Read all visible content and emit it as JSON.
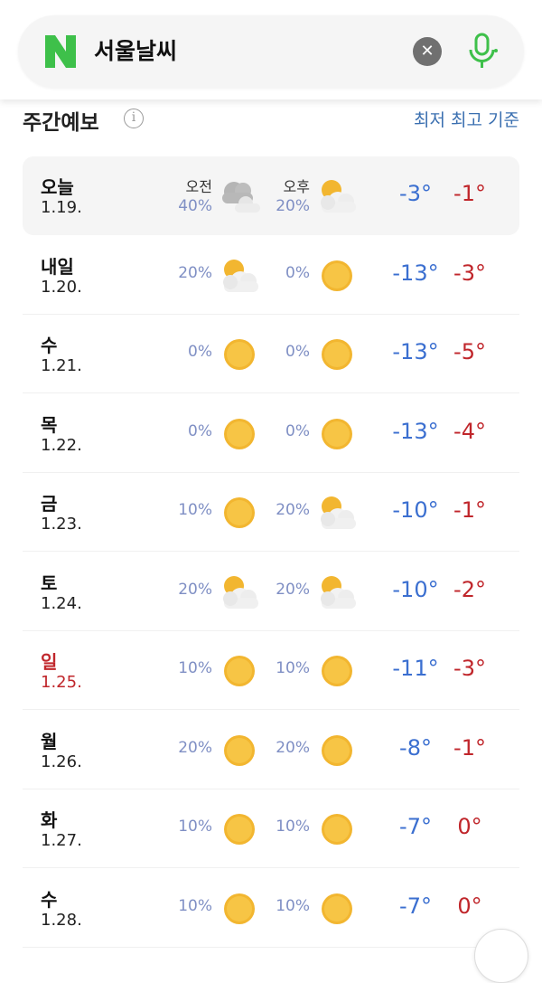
{
  "search": {
    "query": "서울날씨",
    "clear_icon": "close-icon",
    "mic_icon": "microphone-icon",
    "brand_color": "#3ec04a"
  },
  "section": {
    "title": "주간예보",
    "info_icon": "info-icon",
    "sort_label": "최저 최고 기준"
  },
  "colors": {
    "low": "#3b6fd0",
    "high": "#c0262b",
    "sunday": "#c0262b"
  },
  "days": [
    {
      "day": "오늘",
      "date": "1.19.",
      "am_label": "오전",
      "pm_label": "오후",
      "am_pct": "40%",
      "am_icon": "cloudy",
      "pm_pct": "20%",
      "pm_icon": "partly-cloudy",
      "low": "-3°",
      "high": "-1°",
      "today": true
    },
    {
      "day": "내일",
      "date": "1.20.",
      "am_pct": "20%",
      "am_icon": "partly-cloudy",
      "pm_pct": "0%",
      "pm_icon": "sunny",
      "low": "-13°",
      "high": "-3°"
    },
    {
      "day": "수",
      "date": "1.21.",
      "am_pct": "0%",
      "am_icon": "sunny",
      "pm_pct": "0%",
      "pm_icon": "sunny",
      "low": "-13°",
      "high": "-5°"
    },
    {
      "day": "목",
      "date": "1.22.",
      "am_pct": "0%",
      "am_icon": "sunny",
      "pm_pct": "0%",
      "pm_icon": "sunny",
      "low": "-13°",
      "high": "-4°"
    },
    {
      "day": "금",
      "date": "1.23.",
      "am_pct": "10%",
      "am_icon": "sunny",
      "pm_pct": "20%",
      "pm_icon": "partly-cloudy",
      "low": "-10°",
      "high": "-1°"
    },
    {
      "day": "토",
      "date": "1.24.",
      "am_pct": "20%",
      "am_icon": "partly-cloudy",
      "pm_pct": "20%",
      "pm_icon": "partly-cloudy",
      "low": "-10°",
      "high": "-2°"
    },
    {
      "day": "일",
      "date": "1.25.",
      "am_pct": "10%",
      "am_icon": "sunny",
      "pm_pct": "10%",
      "pm_icon": "sunny",
      "low": "-11°",
      "high": "-3°",
      "sunday": true
    },
    {
      "day": "월",
      "date": "1.26.",
      "am_pct": "20%",
      "am_icon": "sunny",
      "pm_pct": "20%",
      "pm_icon": "sunny",
      "low": "-8°",
      "high": "-1°"
    },
    {
      "day": "화",
      "date": "1.27.",
      "am_pct": "10%",
      "am_icon": "sunny",
      "pm_pct": "10%",
      "pm_icon": "sunny",
      "low": "-7°",
      "high": "0°"
    },
    {
      "day": "수",
      "date": "1.28.",
      "am_pct": "10%",
      "am_icon": "sunny",
      "pm_pct": "10%",
      "pm_icon": "sunny",
      "low": "-7°",
      "high": "0°"
    }
  ],
  "scroll_top_icon": "arrow-up-icon"
}
